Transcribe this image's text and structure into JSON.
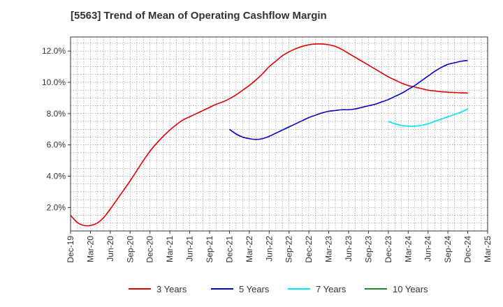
{
  "chart_data": {
    "type": "line",
    "title": "[5563]  Trend of Mean of Operating Cashflow Margin",
    "xlabel": "",
    "ylabel": "",
    "x_ticks": [
      "Dec-19",
      "Mar-20",
      "Jun-20",
      "Sep-20",
      "Dec-20",
      "Mar-21",
      "Jun-21",
      "Sep-21",
      "Dec-21",
      "Mar-22",
      "Jun-22",
      "Sep-22",
      "Dec-22",
      "Mar-23",
      "Jun-23",
      "Sep-23",
      "Dec-23",
      "Mar-24",
      "Jun-24",
      "Sep-24",
      "Dec-24",
      "Mar-25"
    ],
    "y_ticks": [
      {
        "value": 2.0,
        "label": "2.0%"
      },
      {
        "value": 4.0,
        "label": "4.0%"
      },
      {
        "value": 6.0,
        "label": "6.0%"
      },
      {
        "value": 8.0,
        "label": "8.0%"
      },
      {
        "value": 10.0,
        "label": "10.0%"
      },
      {
        "value": 12.0,
        "label": "12.0%"
      }
    ],
    "ylim": [
      0.5,
      12.9
    ],
    "grid": true,
    "legend_position": "bottom",
    "series": [
      {
        "name": "3 Years",
        "color": "#e00000",
        "x": [
          "Dec-19",
          "Jan-20",
          "Feb-20",
          "Mar-20",
          "Apr-20",
          "May-20",
          "Jun-20",
          "Jul-20",
          "Aug-20",
          "Sep-20",
          "Oct-20",
          "Nov-20",
          "Dec-20",
          "Jan-21",
          "Feb-21",
          "Mar-21",
          "Apr-21",
          "May-21",
          "Jun-21",
          "Jul-21",
          "Aug-21",
          "Sep-21",
          "Oct-21",
          "Nov-21",
          "Dec-21",
          "Jan-22",
          "Feb-22",
          "Mar-22",
          "Apr-22",
          "May-22",
          "Jun-22",
          "Jul-22",
          "Aug-22",
          "Sep-22",
          "Oct-22",
          "Nov-22",
          "Dec-22",
          "Jan-23",
          "Feb-23",
          "Mar-23",
          "Apr-23",
          "May-23",
          "Jun-23",
          "Jul-23",
          "Aug-23",
          "Sep-23",
          "Oct-23",
          "Nov-23",
          "Dec-23",
          "Jan-24",
          "Feb-24",
          "Mar-24",
          "Apr-24",
          "May-24",
          "Jun-24",
          "Jul-24",
          "Aug-24",
          "Sep-24",
          "Oct-24",
          "Nov-24",
          "Dec-24"
        ],
        "values": [
          1.5,
          1.05,
          0.85,
          0.85,
          1.0,
          1.35,
          1.9,
          2.5,
          3.1,
          3.7,
          4.35,
          5.0,
          5.6,
          6.1,
          6.55,
          6.95,
          7.3,
          7.6,
          7.8,
          8.0,
          8.2,
          8.4,
          8.6,
          8.75,
          8.95,
          9.2,
          9.5,
          9.8,
          10.15,
          10.55,
          11.0,
          11.35,
          11.7,
          11.95,
          12.15,
          12.3,
          12.4,
          12.45,
          12.45,
          12.4,
          12.3,
          12.1,
          11.85,
          11.6,
          11.35,
          11.1,
          10.85,
          10.6,
          10.35,
          10.15,
          9.95,
          9.8,
          9.7,
          9.6,
          9.5,
          9.45,
          9.4,
          9.37,
          9.35,
          9.33,
          9.32
        ]
      },
      {
        "name": "5 Years",
        "color": "#0000cc",
        "x": [
          "Dec-21",
          "Jan-22",
          "Feb-22",
          "Mar-22",
          "Apr-22",
          "May-22",
          "Jun-22",
          "Jul-22",
          "Aug-22",
          "Sep-22",
          "Oct-22",
          "Nov-22",
          "Dec-22",
          "Jan-23",
          "Feb-23",
          "Mar-23",
          "Apr-23",
          "May-23",
          "Jun-23",
          "Jul-23",
          "Aug-23",
          "Sep-23",
          "Oct-23",
          "Nov-23",
          "Dec-23",
          "Jan-24",
          "Feb-24",
          "Mar-24",
          "Apr-24",
          "May-24",
          "Jun-24",
          "Jul-24",
          "Aug-24",
          "Sep-24",
          "Oct-24",
          "Nov-24",
          "Dec-24"
        ],
        "values": [
          7.0,
          6.7,
          6.5,
          6.4,
          6.35,
          6.4,
          6.55,
          6.75,
          6.95,
          7.15,
          7.35,
          7.55,
          7.75,
          7.9,
          8.05,
          8.15,
          8.2,
          8.25,
          8.25,
          8.3,
          8.4,
          8.5,
          8.6,
          8.75,
          8.9,
          9.1,
          9.3,
          9.55,
          9.8,
          10.1,
          10.4,
          10.7,
          10.95,
          11.15,
          11.25,
          11.35,
          11.4
        ]
      },
      {
        "name": "7 Years",
        "color": "#00e5ee",
        "x": [
          "Dec-23",
          "Jan-24",
          "Feb-24",
          "Mar-24",
          "Apr-24",
          "May-24",
          "Jun-24",
          "Jul-24",
          "Aug-24",
          "Sep-24",
          "Oct-24",
          "Nov-24",
          "Dec-24"
        ],
        "values": [
          7.5,
          7.35,
          7.25,
          7.2,
          7.2,
          7.25,
          7.35,
          7.5,
          7.65,
          7.8,
          7.95,
          8.1,
          8.3
        ]
      },
      {
        "name": "10 Years",
        "color": "#228b22",
        "x": [],
        "values": []
      }
    ]
  }
}
